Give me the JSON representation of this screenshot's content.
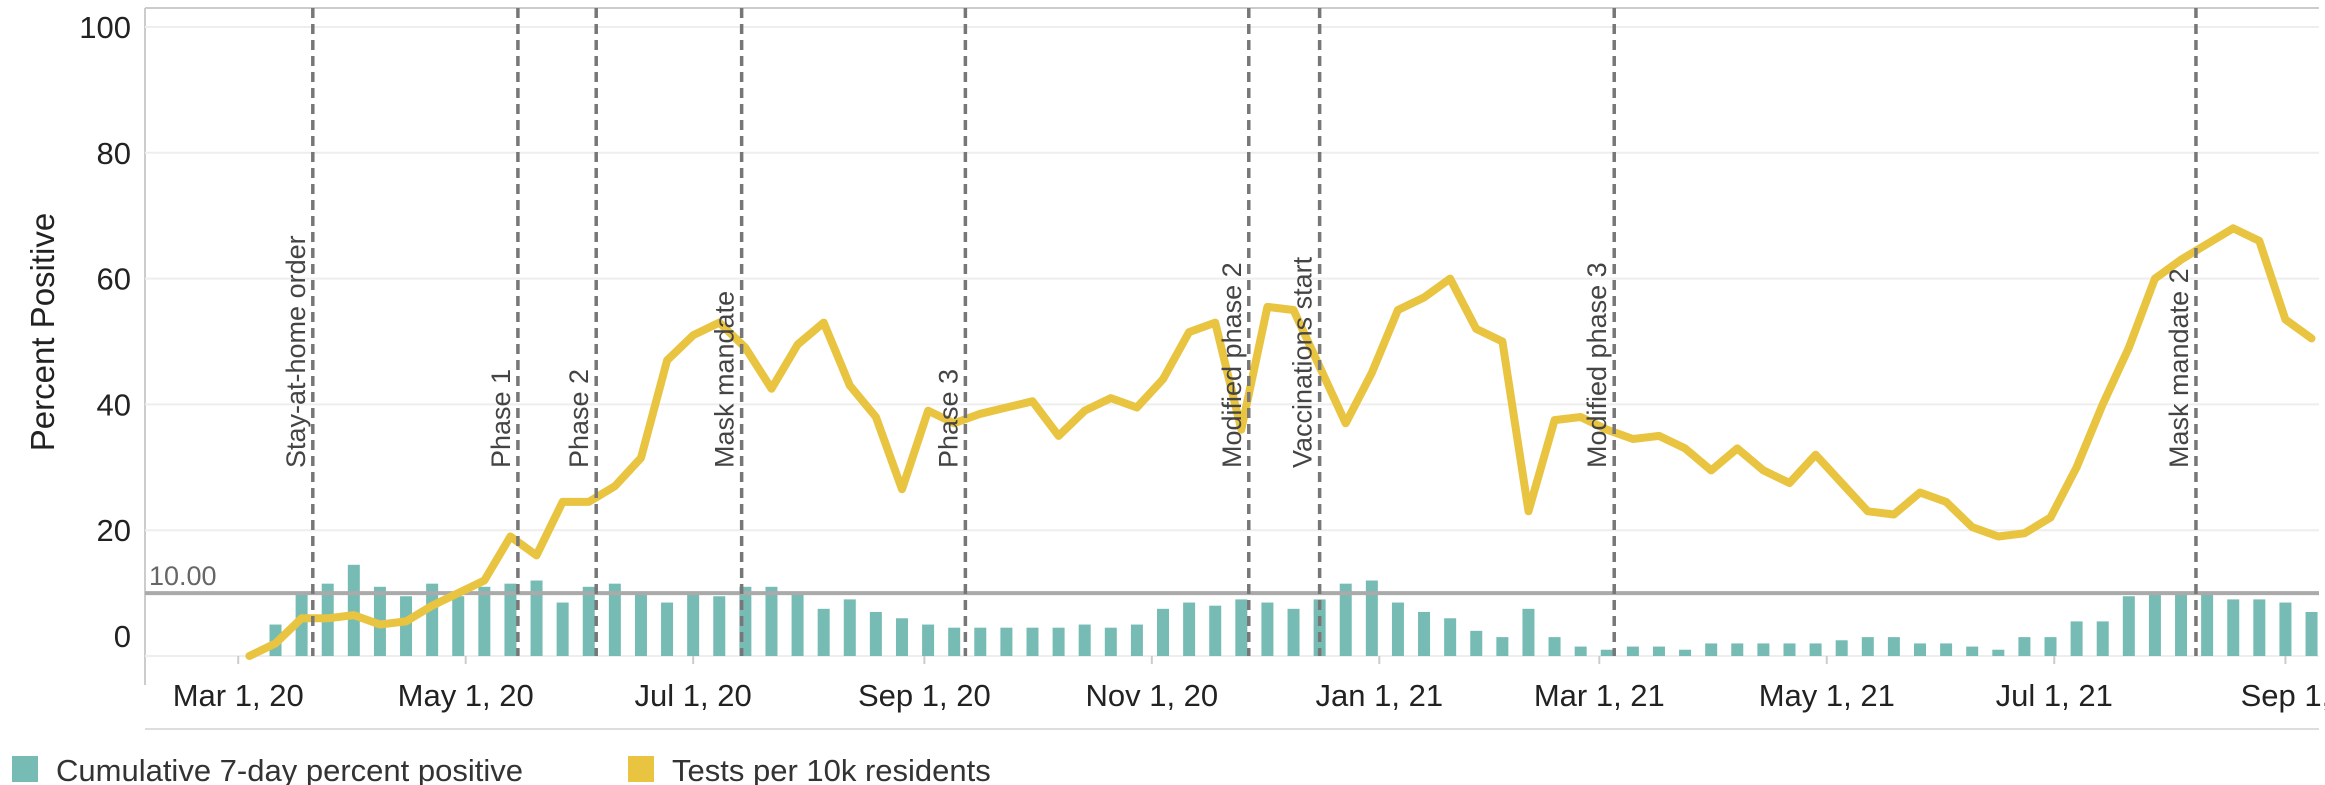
{
  "chart_data": {
    "type": "bar_line",
    "y_axis_label": "Percent Positive",
    "xlim": [
      "2020-02-05",
      "2021-09-10"
    ],
    "xticks": [
      {
        "value": "2020-03-01",
        "label": "Mar 1, 20"
      },
      {
        "value": "2020-05-01",
        "label": "May 1, 20"
      },
      {
        "value": "2020-07-01",
        "label": "Jul 1, 20"
      },
      {
        "value": "2020-09-01",
        "label": "Sep 1, 20"
      },
      {
        "value": "2020-11-01",
        "label": "Nov 1, 20"
      },
      {
        "value": "2021-01-01",
        "label": "Jan 1, 21"
      },
      {
        "value": "2021-03-01",
        "label": "Mar 1, 21"
      },
      {
        "value": "2021-05-01",
        "label": "May 1, 21"
      },
      {
        "value": "2021-07-01",
        "label": "Jul 1, 21"
      },
      {
        "value": "2021-09-01",
        "label": "Sep 1,"
      }
    ],
    "ylim": [
      0,
      100
    ],
    "yticks": [
      0,
      20,
      40,
      60,
      80,
      100
    ],
    "grid": true,
    "x_start": "2020-03-04",
    "x_step_days": 7,
    "series": [
      {
        "name": "Cumulative 7-day percent positive",
        "type": "bar",
        "color": "#77bcb4",
        "values": [
          null,
          5,
          10,
          11.5,
          14.5,
          11,
          9.5,
          11.5,
          9.5,
          11,
          11.5,
          12,
          8.5,
          11,
          11.5,
          10,
          8.5,
          10,
          9.5,
          11,
          11,
          10,
          7.5,
          9,
          7,
          6,
          5,
          4.5,
          4.5,
          4.5,
          4.5,
          4.5,
          5,
          4.5,
          5,
          7.5,
          8.5,
          8,
          9,
          8.5,
          7.5,
          9,
          11.5,
          12,
          8.5,
          7,
          6,
          4,
          3,
          7.5,
          3,
          1.5,
          1,
          1.5,
          1.5,
          1,
          2,
          2,
          2,
          2,
          2,
          2.5,
          3,
          3,
          2,
          2,
          1.5,
          1,
          3,
          3,
          5.5,
          5.5,
          9.5,
          10,
          10,
          10,
          9,
          9,
          8.5,
          7
        ]
      },
      {
        "name": "Tests per 10k residents",
        "type": "line",
        "color": "#e8c440",
        "values": [
          0,
          2,
          6,
          6,
          6.5,
          5,
          5.5,
          8,
          10,
          12,
          19,
          16,
          24.5,
          24.5,
          27,
          31.5,
          47,
          51,
          53,
          49,
          42.5,
          49.5,
          53,
          43,
          38,
          26.5,
          39,
          37,
          38.5,
          39.5,
          40.5,
          35,
          39,
          41,
          39.5,
          44,
          51.5,
          53,
          36,
          55.5,
          55,
          46,
          37,
          45,
          55,
          57,
          60,
          52,
          50,
          23,
          37.5,
          38,
          36,
          34.5,
          35,
          33,
          29.5,
          33,
          29.5,
          27.5,
          32,
          27.5,
          23,
          22.5,
          26,
          24.5,
          20.5,
          19,
          19.5,
          22,
          30,
          40,
          49,
          60,
          63,
          65.5,
          68,
          66,
          53.5,
          50.5
        ]
      }
    ],
    "reference_line": {
      "value": 10,
      "label": "10.00"
    },
    "events": [
      {
        "date": "2020-03-21",
        "label": "Stay-at-home order"
      },
      {
        "date": "2020-05-15",
        "label": "Phase 1"
      },
      {
        "date": "2020-06-05",
        "label": "Phase 2"
      },
      {
        "date": "2020-07-14",
        "label": "Mask mandate"
      },
      {
        "date": "2020-09-12",
        "label": "Phase 3"
      },
      {
        "date": "2020-11-27",
        "label": "Modified phase 2"
      },
      {
        "date": "2020-12-16",
        "label": "Vaccinations start"
      },
      {
        "date": "2021-03-05",
        "label": "Modified phase 3"
      },
      {
        "date": "2021-08-08",
        "label": "Mask mandate 2"
      }
    ]
  }
}
